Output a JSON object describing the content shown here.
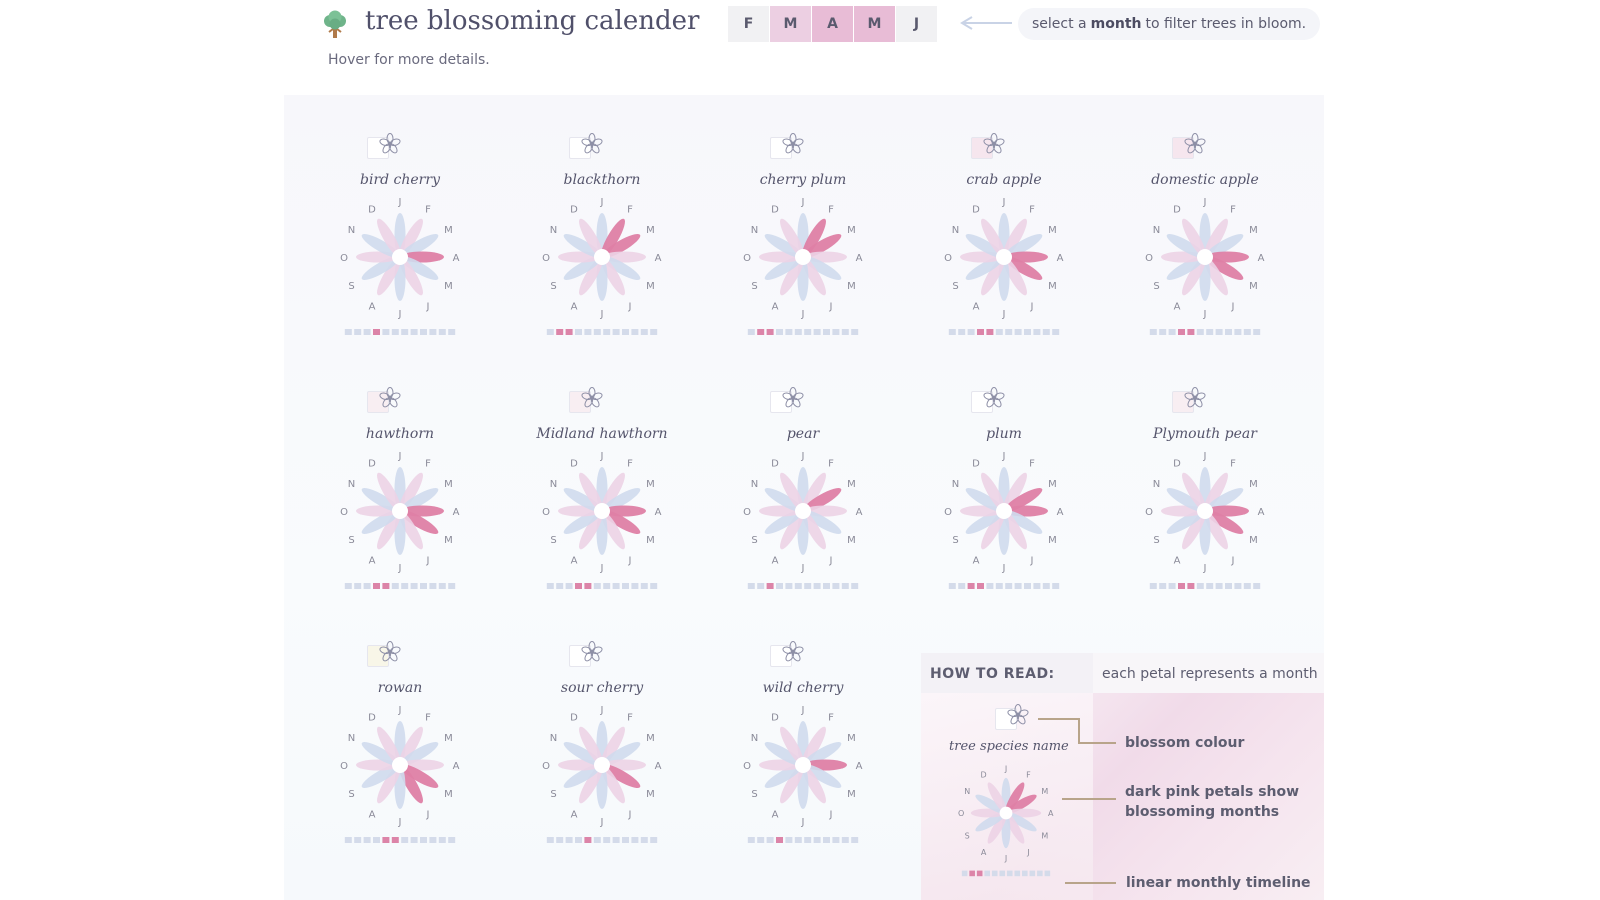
{
  "header": {
    "title": "tree blossoming calender",
    "subtitle": "Hover for more details.",
    "logo_icon": "tree-icon",
    "filter_months": [
      {
        "label": "F",
        "state": "off"
      },
      {
        "label": "M",
        "state": "light"
      },
      {
        "label": "A",
        "state": "dark"
      },
      {
        "label": "M",
        "state": "dark"
      },
      {
        "label": "J",
        "state": "off"
      }
    ],
    "hint_prefix": "select a",
    "hint_bold": "month",
    "hint_suffix": "to filter trees in bloom."
  },
  "colors": {
    "petal_blue": "#cfdaed",
    "petal_pink_light": "#ecd3e6",
    "petal_active": "#de7fa5",
    "timeline_off": "#d4dbea",
    "timeline_on": "#dc84a8",
    "selected_dark": "#e8bcd6",
    "selected_light": "#eccfe2",
    "month_label": "#8a8a98"
  },
  "month_labels": [
    "J",
    "F",
    "M",
    "A",
    "M",
    "J",
    "J",
    "A",
    "S",
    "O",
    "N",
    "D"
  ],
  "trees": [
    {
      "name": "bird cherry",
      "swatch": "#ffffff",
      "blossom_months": [
        3
      ]
    },
    {
      "name": "blackthorn",
      "swatch": "#ffffff",
      "blossom_months": [
        1,
        2
      ]
    },
    {
      "name": "cherry plum",
      "swatch": "#ffffff",
      "blossom_months": [
        1,
        2
      ]
    },
    {
      "name": "crab apple",
      "swatch": "#f6e6ee",
      "blossom_months": [
        3,
        4
      ]
    },
    {
      "name": "domestic apple",
      "swatch": "#f6e6ee",
      "blossom_months": [
        3,
        4
      ]
    },
    {
      "name": "hawthorn",
      "swatch": "#f8eef2",
      "blossom_months": [
        3,
        4
      ]
    },
    {
      "name": "Midland hawthorn",
      "swatch": "#f8eef2",
      "blossom_months": [
        3,
        4
      ]
    },
    {
      "name": "pear",
      "swatch": "#ffffff",
      "blossom_months": [
        2
      ]
    },
    {
      "name": "plum",
      "swatch": "#ffffff",
      "blossom_months": [
        2,
        3
      ]
    },
    {
      "name": "Plymouth pear",
      "swatch": "#f8eef2",
      "blossom_months": [
        3,
        4
      ]
    },
    {
      "name": "rowan",
      "swatch": "#f8f6e8",
      "blossom_months": [
        4,
        5
      ]
    },
    {
      "name": "sour cherry",
      "swatch": "#ffffff",
      "blossom_months": [
        4
      ]
    },
    {
      "name": "wild cherry",
      "swatch": "#ffffff",
      "blossom_months": [
        3
      ]
    }
  ],
  "legend": {
    "title": "HOW TO READ:",
    "description": "each petal represents a month",
    "species_label": "tree species name",
    "blossom_colour": "blossom colour",
    "petals_line1": "dark pink petals show",
    "petals_line2": "blossoming months",
    "timeline": "linear monthly timeline",
    "example_months": [
      1,
      2
    ]
  }
}
